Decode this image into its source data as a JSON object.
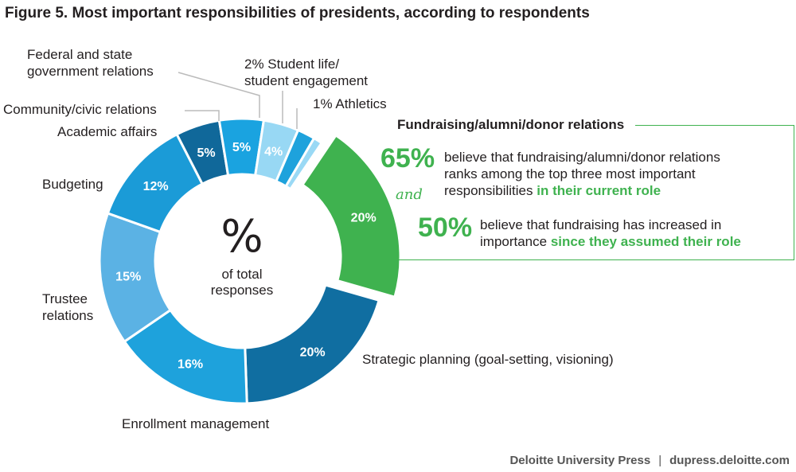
{
  "title": "Figure 5. Most important responsibilities of presidents, according to respondents",
  "center": {
    "symbol": "%",
    "line1": "of total",
    "line2": "responses"
  },
  "chart_data": {
    "type": "pie",
    "title": "Figure 5. Most important responsibilities of presidents, according to respondents",
    "unit": "% of total responses",
    "slices": [
      {
        "label": "Fundraising/alumni/donor relations",
        "value": 20,
        "value_label": "20%",
        "color": "#3fb24f",
        "exploded": true
      },
      {
        "label": "Strategic planning (goal-setting, visioning)",
        "value": 20,
        "value_label": "20%",
        "color": "#106ea1"
      },
      {
        "label": "Enrollment management",
        "value": 16,
        "value_label": "16%",
        "color": "#1ea2dc"
      },
      {
        "label": "Trustee relations",
        "value": 15,
        "value_label": "15%",
        "color": "#5bb2e4"
      },
      {
        "label": "Budgeting",
        "value": 12,
        "value_label": "12%",
        "color": "#1b9bd7"
      },
      {
        "label": "Academic affairs",
        "value": 5,
        "value_label": "5%",
        "color": "#10689a"
      },
      {
        "label": "Community/civic relations",
        "value": 5,
        "value_label": "5%",
        "color": "#1aa3e0"
      },
      {
        "label": "Federal and state government relations",
        "value": 4,
        "value_label": "4%",
        "color": "#98d8f4"
      },
      {
        "label": "Student life/ student engagement",
        "value": 2,
        "value_label": "2%",
        "color": "#1ea2dc"
      },
      {
        "label": "Athletics",
        "value": 1,
        "value_label": "1%",
        "color": "#9ad9f5"
      }
    ]
  },
  "labels": {
    "strategic": "Strategic planning (goal-setting, visioning)",
    "enrollment": "Enrollment management",
    "trustee_1": "Trustee",
    "trustee_2": "relations",
    "budgeting": "Budgeting",
    "academic": "Academic affairs",
    "community": "Community/civic relations",
    "federal_1": "Federal and state",
    "federal_2": "government relations",
    "student_1": "2% Student life/",
    "student_2": "student engagement",
    "athletics": "1% Athletics"
  },
  "callout": {
    "title": "Fundraising/alumni/donor relations",
    "stat1_value": "65%",
    "stat1_text_1": "believe that fundraising/alumni/donor relations",
    "stat1_text_2": "ranks among the top three most important",
    "stat1_text_3a": "responsibilities ",
    "stat1_text_3b": "in their current role",
    "connector": "and",
    "stat2_value": "50%",
    "stat2_text_1": "believe that fundraising has increased in",
    "stat2_text_2a": "importance ",
    "stat2_text_2b": "since they assumed their role"
  },
  "source": {
    "publisher": "Deloitte University Press",
    "separator": "|",
    "url": "dupress.deloitte.com"
  }
}
